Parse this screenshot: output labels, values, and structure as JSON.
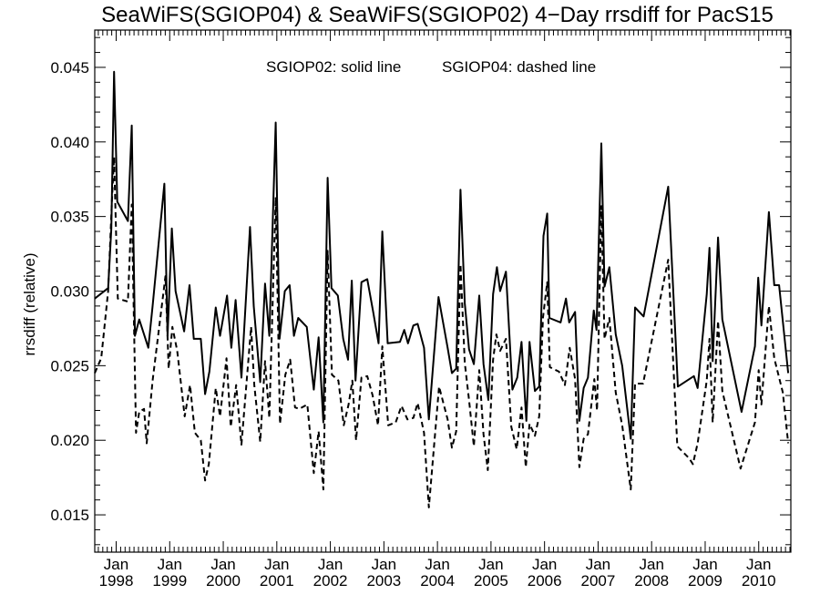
{
  "chart_data": {
    "type": "line",
    "title": "SeaWiFS(SGIOP04) & SeaWiFS(SGIOP02) 4−Day rrsdiff for PacS15",
    "ylabel": "rrsdiff (relative)",
    "xlabel": "",
    "annotations": [
      "SGIOP02: solid line",
      "SGIOP04: dashed line"
    ],
    "xlim": [
      1997.6,
      2010.6
    ],
    "ylim": [
      0.0125,
      0.0475
    ],
    "y_ticks": [
      0.015,
      0.02,
      0.025,
      0.03,
      0.035,
      0.04,
      0.045
    ],
    "y_tick_labels": [
      "0.015",
      "0.020",
      "0.025",
      "0.030",
      "0.035",
      "0.040",
      "0.045"
    ],
    "x_ticks": [
      {
        "month": "Jan",
        "year": "1998",
        "value": 1998
      },
      {
        "month": "Jan",
        "year": "1999",
        "value": 1999
      },
      {
        "month": "Jan",
        "year": "2000",
        "value": 2000
      },
      {
        "month": "Jan",
        "year": "2001",
        "value": 2001
      },
      {
        "month": "Jan",
        "year": "2002",
        "value": 2002
      },
      {
        "month": "Jan",
        "year": "2003",
        "value": 2003
      },
      {
        "month": "Jan",
        "year": "2004",
        "value": 2004
      },
      {
        "month": "Jan",
        "year": "2005",
        "value": 2005
      },
      {
        "month": "Jan",
        "year": "2006",
        "value": 2006
      },
      {
        "month": "Jan",
        "year": "2007",
        "value": 2007
      },
      {
        "month": "Jan",
        "year": "2008",
        "value": 2008
      },
      {
        "month": "Jan",
        "year": "2009",
        "value": 2009
      },
      {
        "month": "Jan",
        "year": "2010",
        "value": 2010
      }
    ],
    "grid": false,
    "series": [
      {
        "name": "SGIOP02",
        "style": "solid",
        "color": "#000000",
        "points": [
          [
            1997.6,
            0.0295
          ],
          [
            1997.85,
            0.0302
          ],
          [
            1997.91,
            0.0342
          ],
          [
            1997.96,
            0.0447
          ],
          [
            1998.02,
            0.036
          ],
          [
            1998.22,
            0.0347
          ],
          [
            1998.29,
            0.0411
          ],
          [
            1998.35,
            0.027
          ],
          [
            1998.43,
            0.0281
          ],
          [
            1998.6,
            0.0262
          ],
          [
            1998.68,
            0.029
          ],
          [
            1998.9,
            0.0372
          ],
          [
            1998.96,
            0.027
          ],
          [
            1999.04,
            0.0342
          ],
          [
            1999.11,
            0.03
          ],
          [
            1999.27,
            0.0273
          ],
          [
            1999.37,
            0.0304
          ],
          [
            1999.45,
            0.0268
          ],
          [
            1999.58,
            0.0268
          ],
          [
            1999.66,
            0.0231
          ],
          [
            1999.74,
            0.0246
          ],
          [
            1999.86,
            0.0289
          ],
          [
            1999.94,
            0.027
          ],
          [
            2000.07,
            0.0297
          ],
          [
            2000.15,
            0.0262
          ],
          [
            2000.23,
            0.0294
          ],
          [
            2000.34,
            0.0242
          ],
          [
            2000.5,
            0.0343
          ],
          [
            2000.57,
            0.029
          ],
          [
            2000.69,
            0.0239
          ],
          [
            2000.78,
            0.0305
          ],
          [
            2000.86,
            0.027
          ],
          [
            2000.98,
            0.0413
          ],
          [
            2001.05,
            0.0268
          ],
          [
            2001.15,
            0.03
          ],
          [
            2001.24,
            0.0304
          ],
          [
            2001.32,
            0.027
          ],
          [
            2001.4,
            0.0282
          ],
          [
            2001.56,
            0.0276
          ],
          [
            2001.69,
            0.0234
          ],
          [
            2001.78,
            0.0269
          ],
          [
            2001.87,
            0.0212
          ],
          [
            2001.95,
            0.0376
          ],
          [
            2002.02,
            0.0302
          ],
          [
            2002.14,
            0.0297
          ],
          [
            2002.24,
            0.0268
          ],
          [
            2002.33,
            0.0254
          ],
          [
            2002.4,
            0.0307
          ],
          [
            2002.47,
            0.024
          ],
          [
            2002.58,
            0.0306
          ],
          [
            2002.69,
            0.0308
          ],
          [
            2002.8,
            0.0286
          ],
          [
            2002.9,
            0.0265
          ],
          [
            2002.97,
            0.034
          ],
          [
            2003.07,
            0.0265
          ],
          [
            2003.3,
            0.0266
          ],
          [
            2003.38,
            0.0274
          ],
          [
            2003.45,
            0.0265
          ],
          [
            2003.55,
            0.0277
          ],
          [
            2003.63,
            0.0278
          ],
          [
            2003.75,
            0.0262
          ],
          [
            2003.84,
            0.0214
          ],
          [
            2004.02,
            0.0296
          ],
          [
            2004.19,
            0.0262
          ],
          [
            2004.27,
            0.0245
          ],
          [
            2004.35,
            0.0248
          ],
          [
            2004.43,
            0.0368
          ],
          [
            2004.51,
            0.0292
          ],
          [
            2004.59,
            0.0261
          ],
          [
            2004.68,
            0.0251
          ],
          [
            2004.78,
            0.0297
          ],
          [
            2004.86,
            0.0251
          ],
          [
            2004.95,
            0.0227
          ],
          [
            2005.04,
            0.0298
          ],
          [
            2005.11,
            0.0316
          ],
          [
            2005.17,
            0.03
          ],
          [
            2005.28,
            0.0313
          ],
          [
            2005.4,
            0.0234
          ],
          [
            2005.49,
            0.0242
          ],
          [
            2005.57,
            0.0266
          ],
          [
            2005.66,
            0.0213
          ],
          [
            2005.72,
            0.0266
          ],
          [
            2005.82,
            0.0233
          ],
          [
            2005.9,
            0.0236
          ],
          [
            2005.98,
            0.0337
          ],
          [
            2006.05,
            0.0352
          ],
          [
            2006.09,
            0.0282
          ],
          [
            2006.3,
            0.0279
          ],
          [
            2006.4,
            0.0295
          ],
          [
            2006.46,
            0.0279
          ],
          [
            2006.57,
            0.0286
          ],
          [
            2006.65,
            0.0213
          ],
          [
            2006.73,
            0.0235
          ],
          [
            2006.81,
            0.0242
          ],
          [
            2006.92,
            0.0287
          ],
          [
            2006.97,
            0.0274
          ],
          [
            2007.06,
            0.0399
          ],
          [
            2007.12,
            0.0303
          ],
          [
            2007.21,
            0.0316
          ],
          [
            2007.33,
            0.0271
          ],
          [
            2007.45,
            0.025
          ],
          [
            2007.61,
            0.0201
          ],
          [
            2007.69,
            0.0289
          ],
          [
            2007.85,
            0.0283
          ],
          [
            2008.31,
            0.037
          ],
          [
            2008.49,
            0.0236
          ],
          [
            2008.79,
            0.0243
          ],
          [
            2008.86,
            0.0235
          ],
          [
            2009.03,
            0.0298
          ],
          [
            2009.08,
            0.0329
          ],
          [
            2009.14,
            0.0253
          ],
          [
            2009.24,
            0.0336
          ],
          [
            2009.32,
            0.0281
          ],
          [
            2009.68,
            0.0219
          ],
          [
            2009.93,
            0.0263
          ],
          [
            2009.99,
            0.0309
          ],
          [
            2010.05,
            0.0277
          ],
          [
            2010.19,
            0.0353
          ],
          [
            2010.29,
            0.0304
          ],
          [
            2010.38,
            0.0304
          ],
          [
            2010.55,
            0.0245
          ]
        ]
      },
      {
        "name": "SGIOP04",
        "style": "dashed",
        "color": "#000000",
        "points": [
          [
            1997.6,
            0.0245
          ],
          [
            1997.72,
            0.0255
          ],
          [
            1997.85,
            0.03
          ],
          [
            1997.92,
            0.036
          ],
          [
            1997.96,
            0.039
          ],
          [
            1998.03,
            0.0295
          ],
          [
            1998.22,
            0.0293
          ],
          [
            1998.29,
            0.0358
          ],
          [
            1998.37,
            0.0205
          ],
          [
            1998.43,
            0.0219
          ],
          [
            1998.52,
            0.0221
          ],
          [
            1998.57,
            0.0198
          ],
          [
            1998.68,
            0.024
          ],
          [
            1998.92,
            0.031
          ],
          [
            1998.98,
            0.0248
          ],
          [
            1999.05,
            0.0276
          ],
          [
            1999.14,
            0.026
          ],
          [
            1999.28,
            0.0216
          ],
          [
            1999.38,
            0.0237
          ],
          [
            1999.47,
            0.0205
          ],
          [
            1999.58,
            0.02
          ],
          [
            1999.66,
            0.0173
          ],
          [
            1999.73,
            0.0184
          ],
          [
            1999.86,
            0.0235
          ],
          [
            1999.94,
            0.0216
          ],
          [
            2000.06,
            0.0255
          ],
          [
            2000.14,
            0.0209
          ],
          [
            2000.24,
            0.0237
          ],
          [
            2000.34,
            0.0197
          ],
          [
            2000.52,
            0.0276
          ],
          [
            2000.58,
            0.0237
          ],
          [
            2000.69,
            0.0199
          ],
          [
            2000.78,
            0.0253
          ],
          [
            2000.86,
            0.0215
          ],
          [
            2000.98,
            0.0363
          ],
          [
            2001.06,
            0.0211
          ],
          [
            2001.16,
            0.0244
          ],
          [
            2001.25,
            0.0254
          ],
          [
            2001.34,
            0.0222
          ],
          [
            2001.42,
            0.0221
          ],
          [
            2001.57,
            0.0224
          ],
          [
            2001.69,
            0.0178
          ],
          [
            2001.78,
            0.0206
          ],
          [
            2001.87,
            0.0167
          ],
          [
            2001.95,
            0.0327
          ],
          [
            2002.03,
            0.0244
          ],
          [
            2002.15,
            0.024
          ],
          [
            2002.25,
            0.021
          ],
          [
            2002.34,
            0.0224
          ],
          [
            2002.41,
            0.024
          ],
          [
            2002.48,
            0.02
          ],
          [
            2002.58,
            0.0242
          ],
          [
            2002.69,
            0.0243
          ],
          [
            2002.79,
            0.023
          ],
          [
            2002.89,
            0.021
          ],
          [
            2002.97,
            0.0263
          ],
          [
            2003.08,
            0.021
          ],
          [
            2003.22,
            0.0212
          ],
          [
            2003.33,
            0.0223
          ],
          [
            2003.44,
            0.0214
          ],
          [
            2003.55,
            0.0215
          ],
          [
            2003.63,
            0.0225
          ],
          [
            2003.75,
            0.0205
          ],
          [
            2003.84,
            0.0155
          ],
          [
            2004.03,
            0.0236
          ],
          [
            2004.19,
            0.0214
          ],
          [
            2004.27,
            0.0195
          ],
          [
            2004.35,
            0.0206
          ],
          [
            2004.43,
            0.0318
          ],
          [
            2004.51,
            0.0252
          ],
          [
            2004.59,
            0.0227
          ],
          [
            2004.68,
            0.0196
          ],
          [
            2004.78,
            0.0247
          ],
          [
            2004.86,
            0.0204
          ],
          [
            2004.94,
            0.018
          ],
          [
            2005.04,
            0.0254
          ],
          [
            2005.1,
            0.0271
          ],
          [
            2005.17,
            0.026
          ],
          [
            2005.28,
            0.0268
          ],
          [
            2005.38,
            0.0209
          ],
          [
            2005.48,
            0.0194
          ],
          [
            2005.57,
            0.0222
          ],
          [
            2005.65,
            0.0182
          ],
          [
            2005.72,
            0.0211
          ],
          [
            2005.82,
            0.0203
          ],
          [
            2005.9,
            0.0216
          ],
          [
            2005.97,
            0.0282
          ],
          [
            2006.05,
            0.0306
          ],
          [
            2006.1,
            0.0249
          ],
          [
            2006.27,
            0.0246
          ],
          [
            2006.38,
            0.0237
          ],
          [
            2006.47,
            0.0262
          ],
          [
            2006.57,
            0.0241
          ],
          [
            2006.65,
            0.0182
          ],
          [
            2006.73,
            0.0201
          ],
          [
            2006.81,
            0.0204
          ],
          [
            2006.93,
            0.0241
          ],
          [
            2006.98,
            0.022
          ],
          [
            2007.06,
            0.0357
          ],
          [
            2007.12,
            0.0268
          ],
          [
            2007.21,
            0.0282
          ],
          [
            2007.33,
            0.0232
          ],
          [
            2007.45,
            0.021
          ],
          [
            2007.61,
            0.0167
          ],
          [
            2007.69,
            0.0238
          ],
          [
            2007.84,
            0.0238
          ],
          [
            2008.31,
            0.0321
          ],
          [
            2008.48,
            0.0196
          ],
          [
            2008.7,
            0.0188
          ],
          [
            2008.77,
            0.0184
          ],
          [
            2008.86,
            0.0198
          ],
          [
            2009.03,
            0.024
          ],
          [
            2009.08,
            0.0268
          ],
          [
            2009.14,
            0.0212
          ],
          [
            2009.24,
            0.028
          ],
          [
            2009.32,
            0.0233
          ],
          [
            2009.66,
            0.0181
          ],
          [
            2009.93,
            0.0212
          ],
          [
            2010.0,
            0.0247
          ],
          [
            2010.05,
            0.0224
          ],
          [
            2010.19,
            0.029
          ],
          [
            2010.29,
            0.0255
          ],
          [
            2010.45,
            0.0232
          ],
          [
            2010.55,
            0.0198
          ]
        ]
      }
    ]
  }
}
